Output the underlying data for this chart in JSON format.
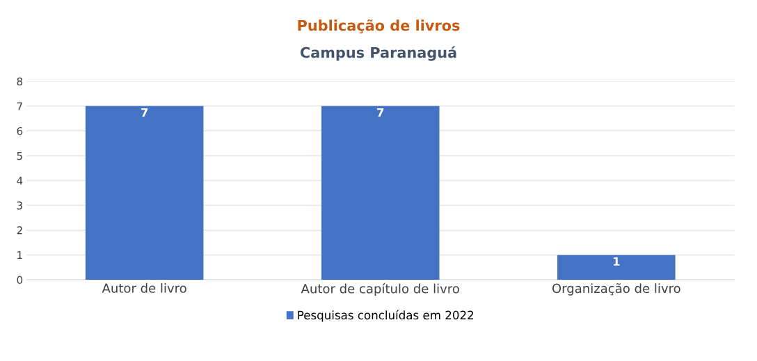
{
  "chart_data": {
    "type": "bar",
    "title": "Publicação de livros",
    "subtitle": "Campus Paranaguá",
    "categories": [
      "Autor de livro",
      "Autor de capítulo de livro",
      "Organização de livro"
    ],
    "series": [
      {
        "name": "Pesquisas concluídas em 2022",
        "color": "#4472c4",
        "values": [
          7,
          7,
          1
        ]
      }
    ],
    "ylim": [
      0,
      8
    ],
    "yticks": [
      0,
      1,
      2,
      3,
      4,
      5,
      6,
      7,
      8
    ],
    "grid": "y",
    "legend": "bottom",
    "data_labels": true
  }
}
